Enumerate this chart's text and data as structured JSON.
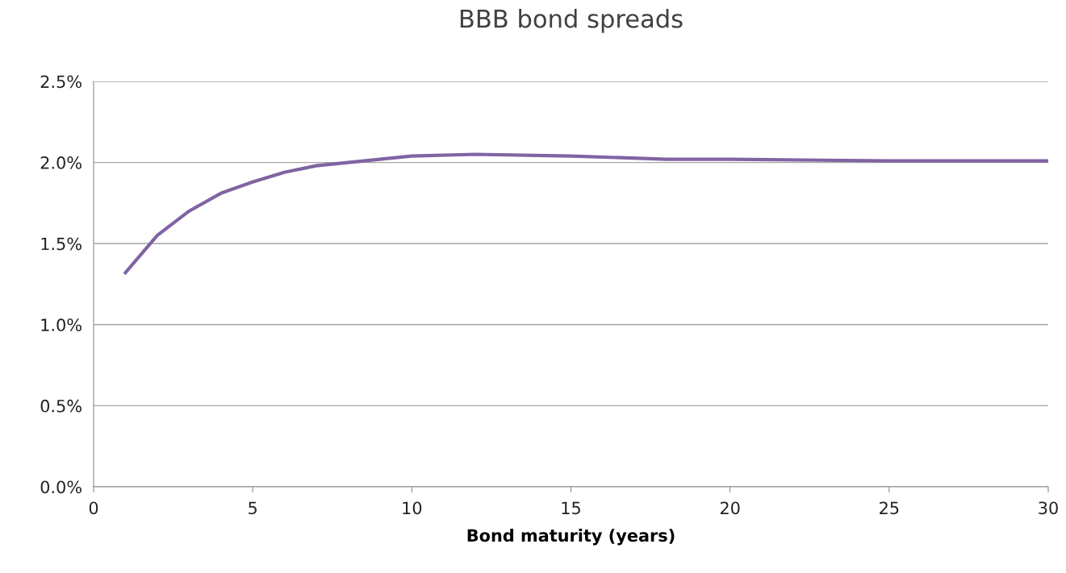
{
  "chart_data": {
    "type": "line",
    "title": "BBB bond spreads",
    "xlabel": "Bond maturity (years)",
    "x": [
      1,
      2,
      3,
      4,
      5,
      6,
      7,
      8,
      10,
      12,
      15,
      18,
      20,
      25,
      30
    ],
    "series": [
      {
        "color": "#8064a2",
        "values": [
          1.32,
          1.55,
          1.7,
          1.81,
          1.88,
          1.94,
          1.98,
          2.0,
          2.04,
          2.05,
          2.04,
          2.02,
          2.02,
          2.01,
          2.01
        ]
      }
    ],
    "xlim": [
      0,
      30
    ],
    "xticks": [
      0,
      5,
      10,
      15,
      20,
      25,
      30
    ],
    "ylim": [
      0,
      2.5
    ],
    "yticks": [
      {
        "value": 0,
        "label": "0.0%"
      },
      {
        "value": 0.5,
        "label": "0.5%"
      },
      {
        "value": 1.0,
        "label": "1.0%"
      },
      {
        "value": 1.5,
        "label": "1.5%"
      },
      {
        "value": 2.0,
        "label": "2.0%"
      },
      {
        "value": 2.5,
        "label": "2.5%"
      }
    ],
    "grid": "y",
    "marker": "none",
    "line_style": "solid"
  }
}
